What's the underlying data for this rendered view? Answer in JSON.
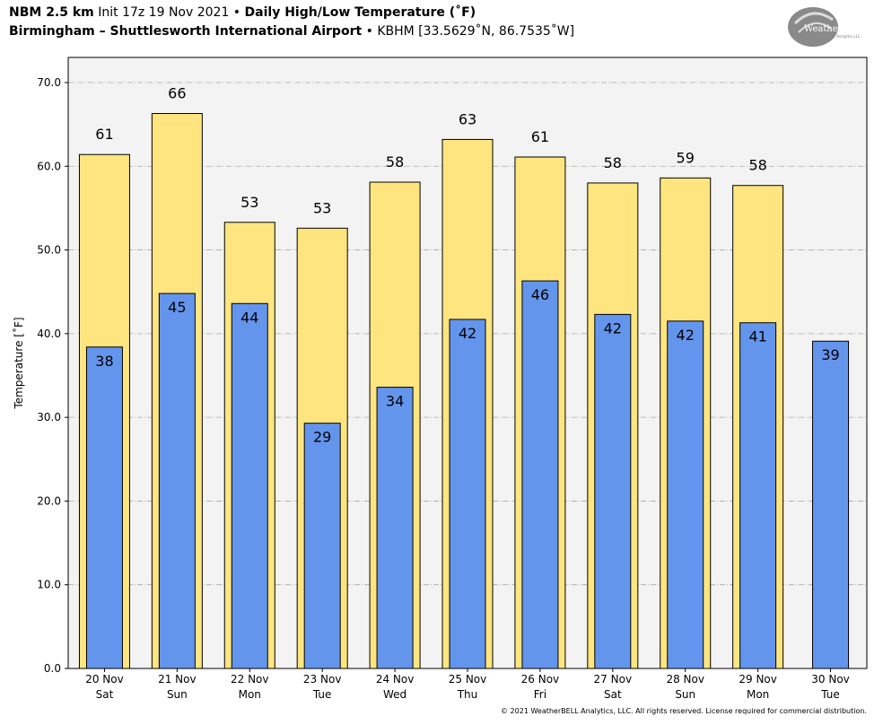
{
  "header": {
    "model": "NBM 2.5 km",
    "init": "Init 17z 19 Nov 2021",
    "sep": " • ",
    "product": "Daily High/Low Temperature (˚F)",
    "station": "Birmingham – Shuttlesworth International Airport",
    "station_code": "KBHM [33.5629˚N, 86.7535˚W]"
  },
  "logo": {
    "text": "WeatherBELL",
    "sub": "Analytics LLC",
    "icon": "weatherbell-logo"
  },
  "footer": {
    "copyright": "© 2021 WeatherBELL Analytics, LLC. All rights reserved. License required for commercial distribution."
  },
  "colors": {
    "high": "#FFE57F",
    "low": "#6495ED",
    "plot_bg": "#F3F3F3",
    "grid": "#AAAAAA"
  },
  "chart_data": {
    "type": "bar",
    "ylabel": "Temperature [˚F]",
    "ylim": [
      0,
      73
    ],
    "yticks": [
      "0.0",
      "10.0",
      "20.0",
      "30.0",
      "40.0",
      "50.0",
      "60.0",
      "70.0"
    ],
    "grid": true,
    "categories": [
      [
        "20 Nov",
        "Sat"
      ],
      [
        "21 Nov",
        "Sun"
      ],
      [
        "22 Nov",
        "Mon"
      ],
      [
        "23 Nov",
        "Tue"
      ],
      [
        "24 Nov",
        "Wed"
      ],
      [
        "25 Nov",
        "Thu"
      ],
      [
        "26 Nov",
        "Fri"
      ],
      [
        "27 Nov",
        "Sat"
      ],
      [
        "28 Nov",
        "Sun"
      ],
      [
        "29 Nov",
        "Mon"
      ],
      [
        "30 Nov",
        "Tue"
      ]
    ],
    "series": [
      {
        "values": [
          61.4,
          66.3,
          53.3,
          52.6,
          58.1,
          63.2,
          61.1,
          58.0,
          58.6,
          57.7,
          null
        ],
        "labels": [
          "61",
          "66",
          "53",
          "53",
          "58",
          "63",
          "61",
          "58",
          "59",
          "58",
          ""
        ]
      },
      {
        "values": [
          38.4,
          44.8,
          43.6,
          29.3,
          33.6,
          41.7,
          46.3,
          42.3,
          41.5,
          41.3,
          39.1
        ],
        "labels": [
          "38",
          "45",
          "44",
          "29",
          "34",
          "42",
          "46",
          "42",
          "42",
          "41",
          "39"
        ]
      }
    ]
  }
}
